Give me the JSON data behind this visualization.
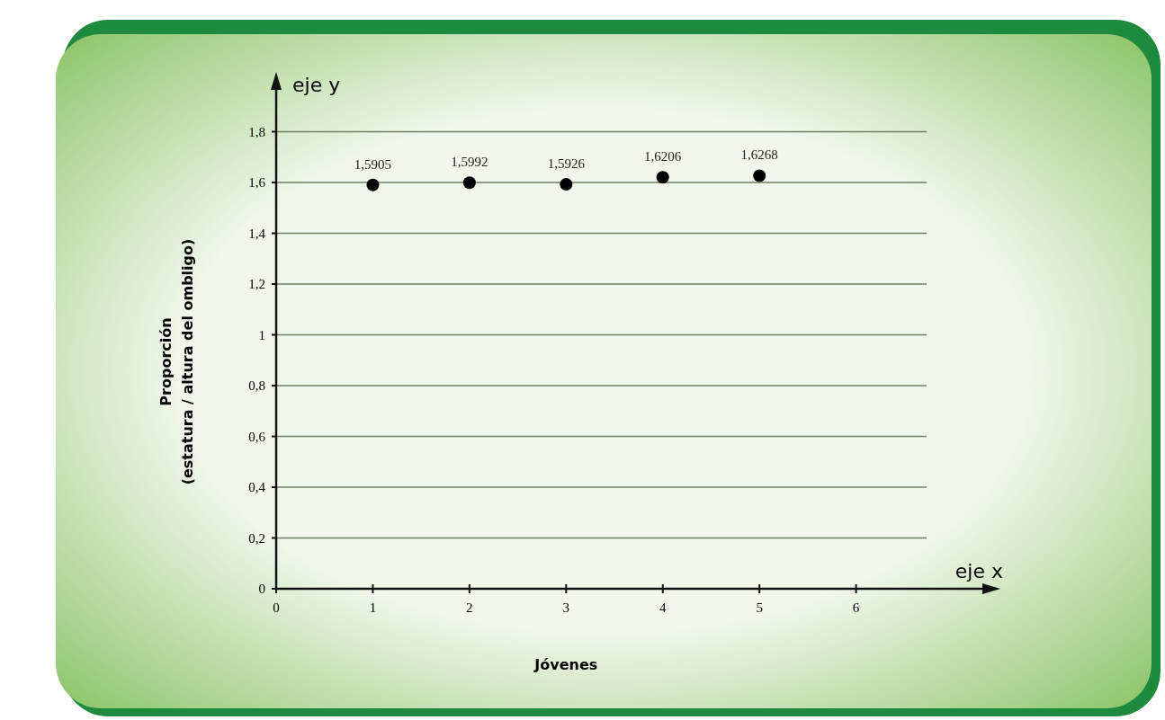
{
  "chart_data": {
    "type": "scatter",
    "xlabel": "Jóvenes",
    "ylabel": "Proporción\n(estatura / altura del ombligo)",
    "annotations": [
      "eje y",
      "eje x"
    ],
    "x": [
      1,
      2,
      3,
      4,
      5
    ],
    "series": [
      {
        "color": "#000000",
        "values": [
          1.5905,
          1.5992,
          1.5926,
          1.6206,
          1.6268
        ],
        "value_labels": [
          "1,5905",
          "1,5992",
          "1,5926",
          "1,6206",
          "1,6268"
        ]
      }
    ],
    "marker": "circle",
    "grid": "y",
    "xlim": [
      0,
      7.4
    ],
    "xticks": [
      0,
      1,
      2,
      3,
      4,
      5,
      6
    ],
    "ylim": [
      0,
      2.0
    ],
    "yticks": [
      0,
      {
        "value": 0.2,
        "label": "0,2"
      },
      {
        "value": 0.4,
        "label": "0,4"
      },
      {
        "value": 0.6,
        "label": "0,6"
      },
      {
        "value": 0.8,
        "label": "0,8"
      },
      1,
      {
        "value": 1.2,
        "label": "1,2"
      },
      {
        "value": 1.4,
        "label": "1,4"
      },
      {
        "value": 1.6,
        "label": "1,6"
      },
      {
        "value": 1.8,
        "label": "1,8"
      }
    ]
  }
}
